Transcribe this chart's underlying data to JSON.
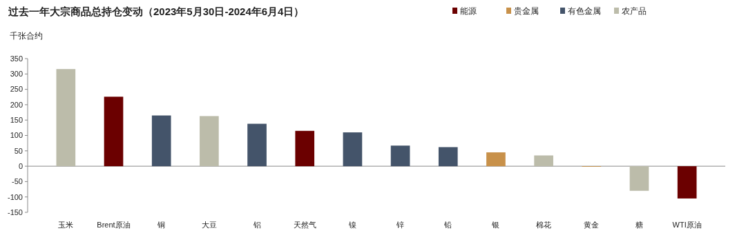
{
  "chart_data": {
    "type": "bar",
    "title": "过去一年大宗商品总持仓变动（2023年5月30日-2024年6月4日）",
    "ylabel": "千张合约",
    "categories": [
      "玉米",
      "Brent原油",
      "铜",
      "大豆",
      "铝",
      "天然气",
      "镍",
      "锌",
      "铅",
      "银",
      "棉花",
      "黄金",
      "糖",
      "WTI原油"
    ],
    "legend": "top right",
    "ylim": [
      -150,
      350
    ],
    "yticks": [
      -150,
      -100,
      -50,
      0,
      50,
      100,
      150,
      200,
      250,
      300,
      350
    ],
    "series": [
      {
        "name": "能源",
        "color": "#6b0000",
        "values": [
          null,
          226,
          null,
          null,
          null,
          115,
          null,
          null,
          null,
          null,
          null,
          null,
          null,
          -105
        ]
      },
      {
        "name": "贵金属",
        "color": "#c8914a",
        "values": [
          null,
          null,
          null,
          null,
          null,
          null,
          null,
          null,
          null,
          45,
          null,
          -2,
          null,
          null
        ]
      },
      {
        "name": "有色金属",
        "color": "#44546a",
        "values": [
          null,
          null,
          165,
          null,
          138,
          null,
          110,
          67,
          62,
          null,
          null,
          null,
          null,
          null
        ]
      },
      {
        "name": "农产品",
        "color": "#bcbcaa",
        "values": [
          316,
          null,
          null,
          163,
          null,
          null,
          null,
          null,
          null,
          null,
          35,
          null,
          -80,
          null
        ]
      }
    ]
  }
}
